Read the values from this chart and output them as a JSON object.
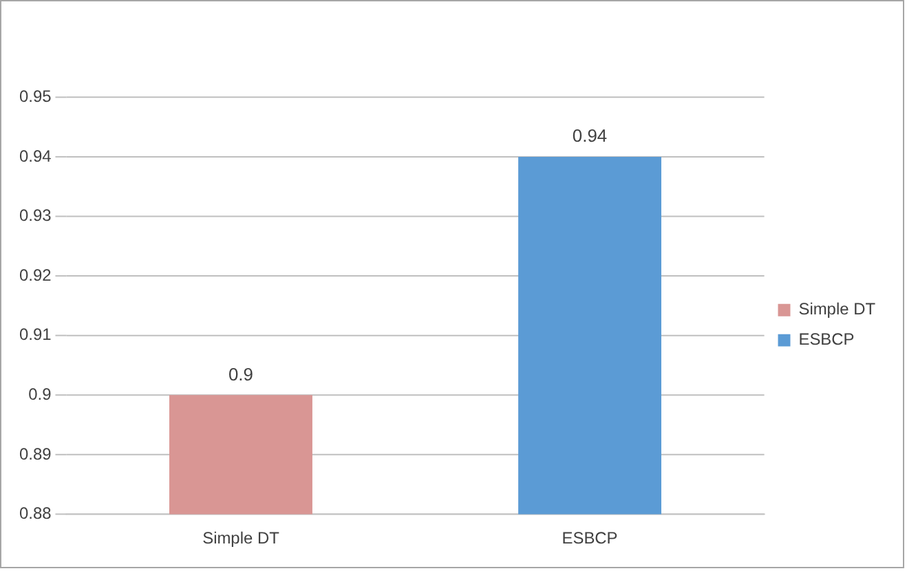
{
  "chart_data": {
    "type": "bar",
    "categories": [
      "Simple DT",
      "ESBCP"
    ],
    "series": [
      {
        "name": "Simple DT",
        "color": "#d99694",
        "values": [
          0.9,
          null
        ]
      },
      {
        "name": "ESBCP",
        "color": "#5b9bd5",
        "values": [
          null,
          0.94
        ]
      }
    ],
    "ylim": [
      0.88,
      0.95
    ],
    "yticks": [
      0.88,
      0.89,
      0.9,
      0.91,
      0.92,
      0.93,
      0.94,
      0.95
    ],
    "grid": "y",
    "legend": "right",
    "data_labels": true
  }
}
